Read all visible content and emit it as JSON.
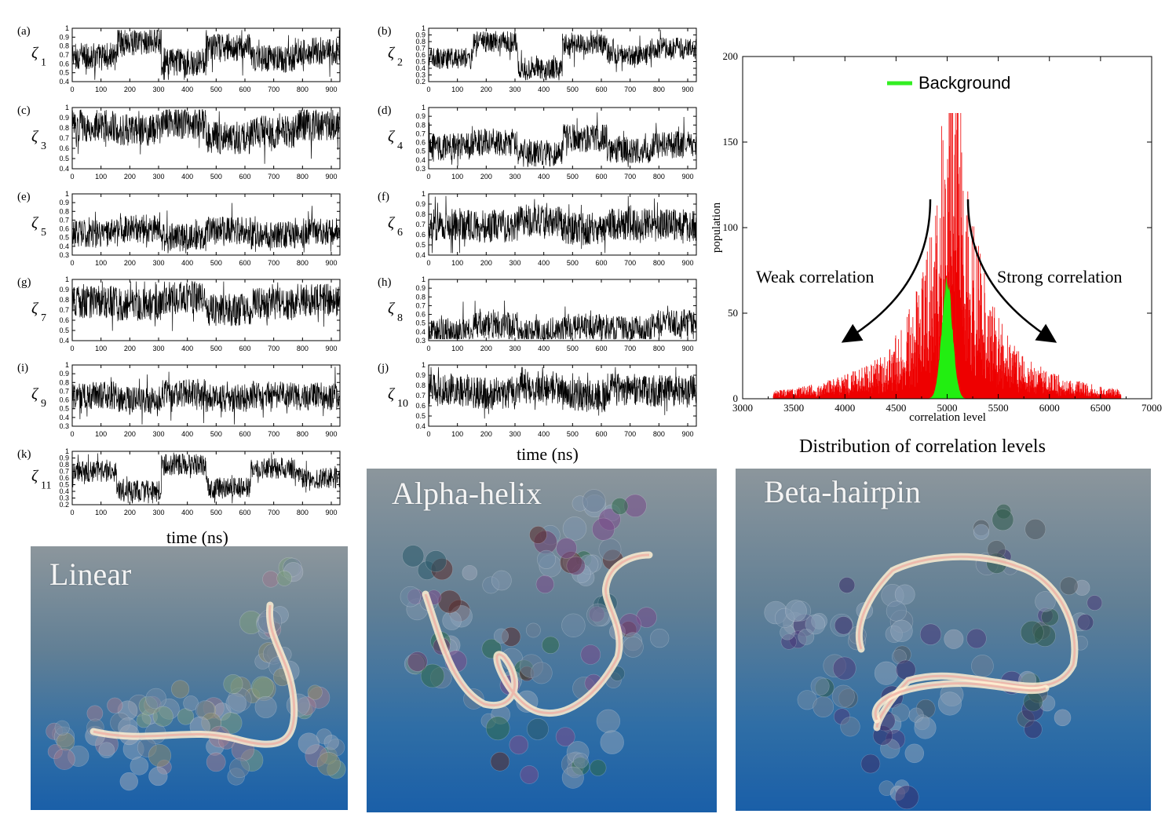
{
  "time_series": {
    "xlabel": "time (ns)",
    "xticks": [
      0,
      100,
      200,
      300,
      400,
      500,
      600,
      700,
      800,
      900
    ],
    "xlim": [
      0,
      930
    ],
    "symbol": "ζ",
    "panels": [
      {
        "label": "(a)",
        "sub": "1",
        "yticks": [
          0.4,
          0.5,
          0.6,
          0.7,
          0.8,
          0.9,
          1
        ],
        "ylim": [
          0.4,
          1.0
        ]
      },
      {
        "label": "(b)",
        "sub": "2",
        "yticks": [
          0.2,
          0.3,
          0.4,
          0.5,
          0.6,
          0.7,
          0.8,
          0.9,
          1
        ],
        "ylim": [
          0.2,
          1.0
        ]
      },
      {
        "label": "(c)",
        "sub": "3",
        "yticks": [
          0.4,
          0.5,
          0.6,
          0.7,
          0.8,
          0.9,
          1
        ],
        "ylim": [
          0.4,
          1.0
        ]
      },
      {
        "label": "(d)",
        "sub": "4",
        "yticks": [
          0.3,
          0.4,
          0.5,
          0.6,
          0.7,
          0.8,
          0.9,
          1
        ],
        "ylim": [
          0.3,
          1.0
        ]
      },
      {
        "label": "(e)",
        "sub": "5",
        "yticks": [
          0.3,
          0.4,
          0.5,
          0.6,
          0.7,
          0.8,
          0.9,
          1
        ],
        "ylim": [
          0.3,
          1.0
        ]
      },
      {
        "label": "(f)",
        "sub": "6",
        "yticks": [
          0.4,
          0.5,
          0.6,
          0.7,
          0.8,
          0.9,
          1
        ],
        "ylim": [
          0.4,
          1.0
        ]
      },
      {
        "label": "(g)",
        "sub": "7",
        "yticks": [
          0.4,
          0.5,
          0.6,
          0.7,
          0.8,
          0.9,
          1
        ],
        "ylim": [
          0.4,
          1.0
        ]
      },
      {
        "label": "(h)",
        "sub": "8",
        "yticks": [
          0.3,
          0.4,
          0.5,
          0.6,
          0.7,
          0.8,
          0.9,
          1
        ],
        "ylim": [
          0.3,
          1.0
        ]
      },
      {
        "label": "(i)",
        "sub": "9",
        "yticks": [
          0.3,
          0.4,
          0.5,
          0.6,
          0.7,
          0.8,
          0.9,
          1
        ],
        "ylim": [
          0.3,
          1.0
        ]
      },
      {
        "label": "(j)",
        "sub": "10",
        "yticks": [
          0.4,
          0.5,
          0.6,
          0.7,
          0.8,
          0.9,
          1
        ],
        "ylim": [
          0.4,
          1.0
        ]
      },
      {
        "label": "(k)",
        "sub": "11",
        "yticks": [
          0.2,
          0.3,
          0.4,
          0.5,
          0.6,
          0.7,
          0.8,
          0.9,
          1
        ],
        "ylim": [
          0.2,
          1.0
        ]
      }
    ]
  },
  "chart_data": {
    "type": "bar",
    "caption": "Distribution of correlation levels",
    "xlabel": "correlation level",
    "ylabel": "population",
    "xlim": [
      3000,
      7000
    ],
    "ylim": [
      0,
      200
    ],
    "xticks": [
      3000,
      3500,
      4000,
      4500,
      5000,
      5500,
      6000,
      6500,
      7000
    ],
    "yticks": [
      0,
      50,
      100,
      150,
      200
    ],
    "legend": {
      "position": "top-center",
      "entries": [
        {
          "name": "Background",
          "color": "#33ee22"
        }
      ]
    },
    "series": [
      {
        "name": "",
        "color": "#ee0000",
        "description": "histogram peaked at ~5050 with max ~167, broad tails from ~3300 to ~6700"
      },
      {
        "name": "Background",
        "color": "#22ee11",
        "peak_x": 5000,
        "peak_value": 72,
        "range": [
          4800,
          5250
        ]
      }
    ],
    "annotations": [
      {
        "text": "Weak correlation",
        "arrow_to": [
          4000,
          30
        ]
      },
      {
        "text": "Strong correlation",
        "arrow_to": [
          6100,
          30
        ]
      }
    ]
  },
  "structures": [
    {
      "title": "Linear"
    },
    {
      "title": "Alpha-helix"
    },
    {
      "title": "Beta-hairpin"
    }
  ]
}
